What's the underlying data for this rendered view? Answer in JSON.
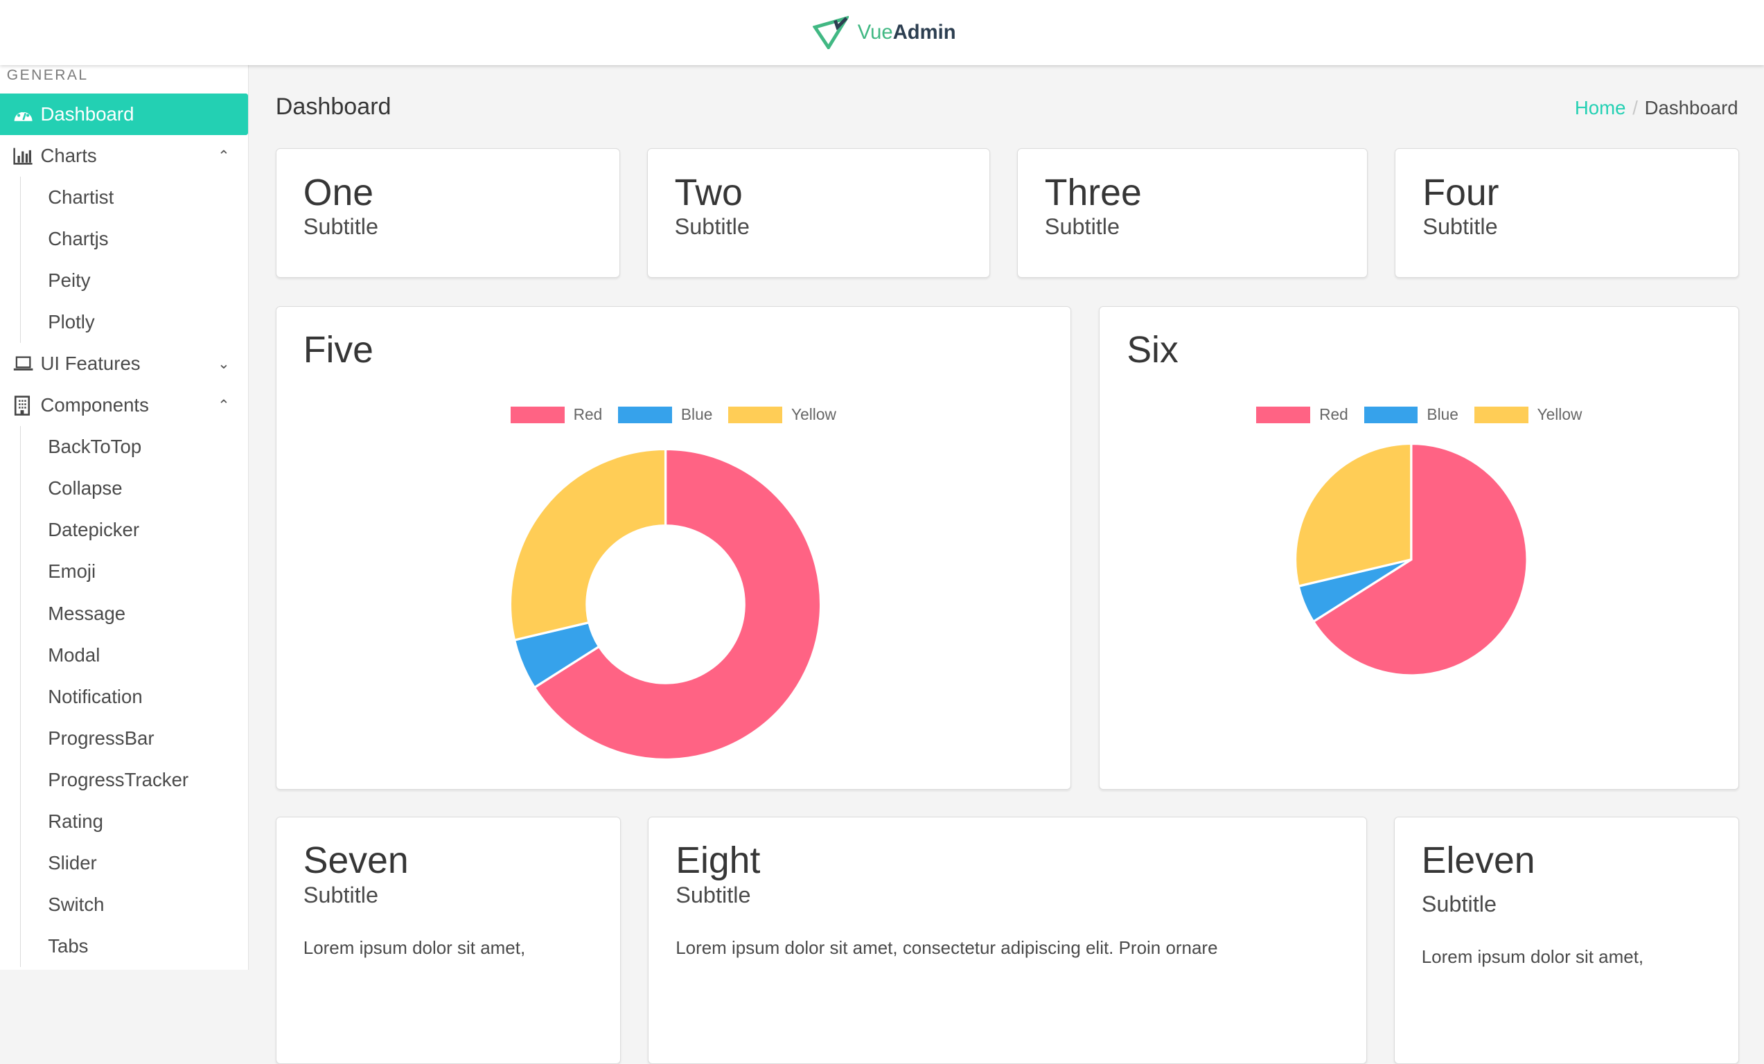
{
  "header": {
    "logo_part1": "Vue",
    "logo_part2": "Admin"
  },
  "sidebar": {
    "section_label": "GENERAL",
    "items": [
      {
        "label": "Dashboard",
        "icon": "dashboard-icon",
        "active": true
      },
      {
        "label": "Charts",
        "icon": "bar-chart-icon",
        "expanded": true,
        "children": [
          "Chartist",
          "Chartjs",
          "Peity",
          "Plotly"
        ]
      },
      {
        "label": "UI Features",
        "icon": "laptop-icon",
        "expanded": false
      },
      {
        "label": "Components",
        "icon": "building-icon",
        "expanded": true,
        "children": [
          "BackToTop",
          "Collapse",
          "Datepicker",
          "Emoji",
          "Message",
          "Modal",
          "Notification",
          "ProgressBar",
          "ProgressTracker",
          "Rating",
          "Slider",
          "Switch",
          "Tabs"
        ]
      }
    ]
  },
  "page": {
    "title": "Dashboard",
    "breadcrumb": {
      "home": "Home",
      "current": "Dashboard"
    }
  },
  "cards": {
    "one": {
      "title": "One",
      "subtitle": "Subtitle"
    },
    "two": {
      "title": "Two",
      "subtitle": "Subtitle"
    },
    "three": {
      "title": "Three",
      "subtitle": "Subtitle"
    },
    "four": {
      "title": "Four",
      "subtitle": "Subtitle"
    },
    "five": {
      "title": "Five"
    },
    "six": {
      "title": "Six"
    },
    "seven": {
      "title": "Seven",
      "subtitle": "Subtitle",
      "text": "Lorem ipsum dolor sit amet,"
    },
    "eight": {
      "title": "Eight",
      "subtitle": "Subtitle",
      "text": "Lorem ipsum dolor sit amet, consectetur adipiscing elit. Proin ornare"
    },
    "eleven": {
      "title": "Eleven",
      "subtitle": "Subtitle",
      "text": "Lorem ipsum dolor sit amet,"
    }
  },
  "chart_data": [
    {
      "type": "doughnut",
      "legend_position": "top",
      "categories": [
        "Red",
        "Blue",
        "Yellow"
      ],
      "values": [
        66,
        5.3,
        28.7
      ],
      "colors": [
        "#ff6384",
        "#36a2eb",
        "#ffcd56"
      ]
    },
    {
      "type": "pie",
      "legend_position": "top",
      "categories": [
        "Red",
        "Blue",
        "Yellow"
      ],
      "values": [
        66,
        5.3,
        28.7
      ],
      "colors": [
        "#ff6384",
        "#36a2eb",
        "#ffcd56"
      ]
    }
  ]
}
